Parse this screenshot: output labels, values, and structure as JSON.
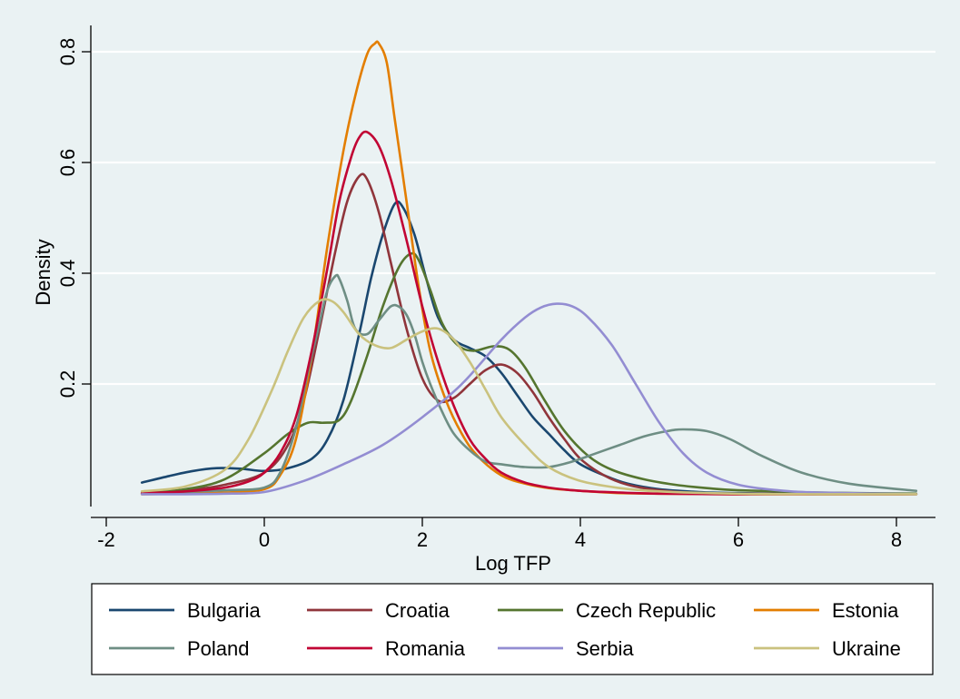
{
  "chart_data": {
    "type": "line",
    "title": "",
    "xlabel": "Log TFP",
    "ylabel": "Density",
    "xlim": [
      -2,
      8.4
    ],
    "ylim": [
      0,
      0.82
    ],
    "x_ticks": [
      "-2",
      "0",
      "2",
      "4",
      "6",
      "8"
    ],
    "x_tick_values": [
      -2,
      0,
      2,
      4,
      6,
      8
    ],
    "y_ticks": [
      "0.2",
      "0.4",
      "0.6",
      "0.8"
    ],
    "y_tick_values": [
      0.2,
      0.4,
      0.6,
      0.8
    ],
    "grid": "horizontal",
    "legend_position": "bottom",
    "series": [
      {
        "name": "Bulgaria",
        "color": "#1a476f",
        "x": [
          -1.55,
          -1.2,
          -0.9,
          -0.6,
          -0.3,
          0,
          0.3,
          0.6,
          0.8,
          1.0,
          1.2,
          1.35,
          1.5,
          1.65,
          1.75,
          1.9,
          2.05,
          2.2,
          2.4,
          2.6,
          2.8,
          3.0,
          3.2,
          3.4,
          3.6,
          3.8,
          4.0,
          4.3,
          4.6,
          5.0,
          5.5,
          6.0,
          7.0,
          8.25
        ],
        "y": [
          0.022,
          0.034,
          0.043,
          0.048,
          0.047,
          0.043,
          0.048,
          0.065,
          0.1,
          0.17,
          0.29,
          0.39,
          0.47,
          0.525,
          0.52,
          0.47,
          0.39,
          0.32,
          0.28,
          0.265,
          0.25,
          0.22,
          0.18,
          0.14,
          0.11,
          0.08,
          0.055,
          0.035,
          0.02,
          0.01,
          0.005,
          0.003,
          0.001,
          0.001
        ]
      },
      {
        "name": "Croatia",
        "color": "#90353b",
        "x": [
          -1.55,
          -1,
          -0.5,
          0,
          0.3,
          0.5,
          0.7,
          0.9,
          1.05,
          1.2,
          1.3,
          1.45,
          1.6,
          1.8,
          2.0,
          2.2,
          2.4,
          2.6,
          2.8,
          3.0,
          3.2,
          3.4,
          3.6,
          3.8,
          4.0,
          4.3,
          4.6,
          5.0,
          5.5,
          6.0,
          7.0,
          8.25
        ],
        "y": [
          0.003,
          0.008,
          0.018,
          0.04,
          0.09,
          0.17,
          0.3,
          0.44,
          0.53,
          0.575,
          0.57,
          0.51,
          0.42,
          0.3,
          0.21,
          0.17,
          0.175,
          0.2,
          0.225,
          0.235,
          0.22,
          0.185,
          0.14,
          0.1,
          0.065,
          0.035,
          0.018,
          0.008,
          0.003,
          0.002,
          0.001,
          0.001
        ]
      },
      {
        "name": "Czech Republic",
        "color": "#55752f",
        "x": [
          -1.55,
          -1,
          -0.5,
          0,
          0.3,
          0.55,
          0.75,
          0.95,
          1.1,
          1.3,
          1.5,
          1.7,
          1.85,
          1.95,
          2.1,
          2.25,
          2.45,
          2.65,
          2.9,
          3.1,
          3.3,
          3.55,
          3.8,
          4.1,
          4.4,
          4.8,
          5.2,
          5.6,
          6.0,
          7.0,
          8.25
        ],
        "y": [
          0.003,
          0.01,
          0.028,
          0.075,
          0.11,
          0.13,
          0.13,
          0.135,
          0.17,
          0.25,
          0.34,
          0.41,
          0.435,
          0.425,
          0.37,
          0.31,
          0.27,
          0.26,
          0.268,
          0.262,
          0.23,
          0.17,
          0.115,
          0.07,
          0.045,
          0.028,
          0.018,
          0.012,
          0.008,
          0.004,
          0.002
        ]
      },
      {
        "name": "Estonia",
        "color": "#e37e00",
        "x": [
          -1.55,
          -1,
          -0.5,
          0,
          0.2,
          0.4,
          0.6,
          0.8,
          1.0,
          1.15,
          1.3,
          1.4,
          1.45,
          1.55,
          1.65,
          1.8,
          1.95,
          2.1,
          2.3,
          2.5,
          2.7,
          3.0,
          3.3,
          3.6,
          4.0,
          4.5,
          5.0,
          6.0,
          7.0,
          8.25
        ],
        "y": [
          0.001,
          0.002,
          0.004,
          0.01,
          0.035,
          0.1,
          0.25,
          0.45,
          0.62,
          0.72,
          0.795,
          0.815,
          0.815,
          0.78,
          0.68,
          0.53,
          0.38,
          0.26,
          0.17,
          0.11,
          0.07,
          0.035,
          0.02,
          0.012,
          0.007,
          0.003,
          0.002,
          0.001,
          0.001,
          0.001
        ]
      },
      {
        "name": "Poland",
        "color": "#6e8e84",
        "x": [
          -1.55,
          -1,
          -0.5,
          0,
          0.2,
          0.4,
          0.55,
          0.7,
          0.8,
          0.9,
          0.95,
          1.05,
          1.15,
          1.3,
          1.45,
          1.6,
          1.7,
          1.8,
          1.9,
          2.0,
          2.1,
          2.25,
          2.4,
          2.6,
          2.8,
          3.0,
          3.3,
          3.6,
          3.9,
          4.2,
          4.5,
          4.8,
          5.1,
          5.3,
          5.6,
          5.9,
          6.3,
          6.8,
          7.4,
          8.25
        ],
        "y": [
          0.003,
          0.005,
          0.008,
          0.013,
          0.04,
          0.12,
          0.22,
          0.31,
          0.37,
          0.395,
          0.39,
          0.35,
          0.3,
          0.29,
          0.315,
          0.34,
          0.34,
          0.325,
          0.29,
          0.24,
          0.2,
          0.15,
          0.11,
          0.08,
          0.06,
          0.055,
          0.05,
          0.05,
          0.06,
          0.075,
          0.09,
          0.105,
          0.115,
          0.118,
          0.115,
          0.1,
          0.07,
          0.04,
          0.02,
          0.007
        ]
      },
      {
        "name": "Romania",
        "color": "#c10534",
        "x": [
          -1.55,
          -1,
          -0.5,
          -0.2,
          0,
          0.2,
          0.4,
          0.6,
          0.8,
          0.95,
          1.1,
          1.2,
          1.3,
          1.45,
          1.6,
          1.8,
          2.0,
          2.2,
          2.4,
          2.6,
          2.8,
          3.0,
          3.3,
          3.6,
          4.0,
          4.5,
          5.0,
          6.0,
          7.0,
          8.25
        ],
        "y": [
          0.003,
          0.006,
          0.013,
          0.024,
          0.04,
          0.075,
          0.14,
          0.26,
          0.41,
          0.53,
          0.61,
          0.645,
          0.655,
          0.63,
          0.57,
          0.46,
          0.34,
          0.24,
          0.16,
          0.1,
          0.065,
          0.04,
          0.022,
          0.013,
          0.007,
          0.004,
          0.002,
          0.001,
          0.001,
          0.001
        ]
      },
      {
        "name": "Serbia",
        "color": "#938dd2",
        "x": [
          -1.55,
          -1,
          -0.5,
          0,
          0.5,
          1.0,
          1.5,
          2.0,
          2.5,
          3.0,
          3.3,
          3.5,
          3.7,
          3.9,
          4.1,
          4.4,
          4.7,
          5.0,
          5.3,
          5.6,
          6.0,
          6.5,
          7.0,
          8.25
        ],
        "y": [
          0.001,
          0.001,
          0.002,
          0.005,
          0.025,
          0.055,
          0.09,
          0.14,
          0.2,
          0.28,
          0.32,
          0.338,
          0.345,
          0.34,
          0.32,
          0.27,
          0.2,
          0.13,
          0.075,
          0.04,
          0.018,
          0.008,
          0.004,
          0.001
        ]
      },
      {
        "name": "Ukraine",
        "color": "#cac27e",
        "x": [
          -1.55,
          -1,
          -0.5,
          -0.2,
          0.1,
          0.3,
          0.5,
          0.7,
          0.85,
          1.0,
          1.2,
          1.4,
          1.6,
          1.8,
          2.0,
          2.2,
          2.4,
          2.6,
          2.8,
          3.0,
          3.3,
          3.6,
          4.0,
          4.5,
          5.0,
          6.0,
          7.0,
          8.25
        ],
        "y": [
          0.006,
          0.015,
          0.045,
          0.1,
          0.19,
          0.26,
          0.32,
          0.35,
          0.35,
          0.33,
          0.29,
          0.27,
          0.265,
          0.28,
          0.295,
          0.3,
          0.28,
          0.24,
          0.19,
          0.14,
          0.09,
          0.05,
          0.025,
          0.012,
          0.006,
          0.002,
          0.001,
          0.001
        ]
      }
    ]
  }
}
